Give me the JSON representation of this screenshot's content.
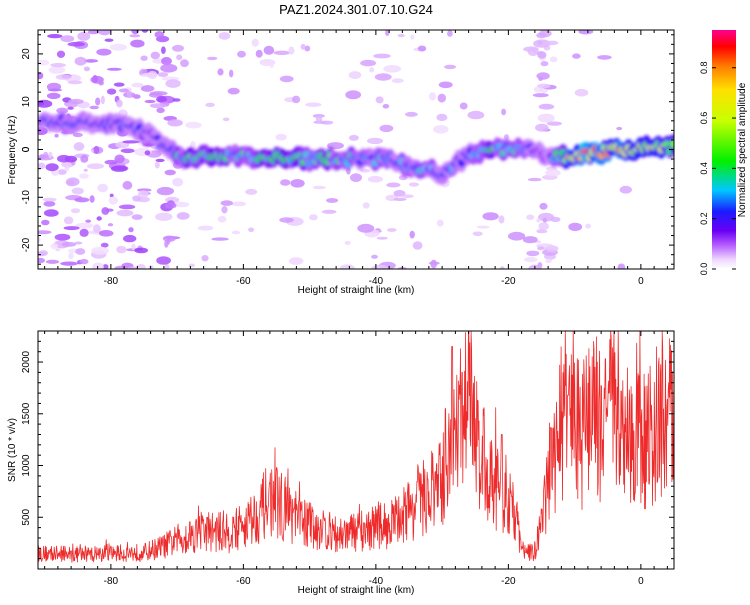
{
  "title": "PAZ1.2024.301.07.10.G24",
  "colorbar": {
    "label": "Normalized spectral amplitude",
    "ticks": [
      "0.0",
      "0.2",
      "0.4",
      "0.6",
      "0.8"
    ],
    "tick_values": [
      0.0,
      0.2,
      0.4,
      0.6,
      0.8
    ]
  },
  "chart_data": [
    {
      "type": "heatmap",
      "xlabel": "Height of straight line (km)",
      "ylabel": "Frequency (Hz)",
      "xlim": [
        -91,
        5
      ],
      "ylim": [
        -25,
        25
      ],
      "xticks": [
        -80,
        -60,
        -40,
        -20,
        0
      ],
      "yticks": [
        -20,
        -10,
        0,
        10,
        20
      ],
      "color_range": [
        0,
        0.95
      ],
      "ridge_frequency": [
        [
          -90,
          6
        ],
        [
          -86,
          6
        ],
        [
          -82,
          5
        ],
        [
          -78,
          5
        ],
        [
          -74,
          3
        ],
        [
          -70,
          -1.5
        ],
        [
          -66,
          -1.5
        ],
        [
          -62,
          -1.5
        ],
        [
          -58,
          -1.5
        ],
        [
          -54,
          -1.5
        ],
        [
          -50,
          -2
        ],
        [
          -46,
          -2
        ],
        [
          -42,
          -2
        ],
        [
          -38,
          -2
        ],
        [
          -34,
          -4
        ],
        [
          -30,
          -5
        ],
        [
          -26,
          -1
        ],
        [
          -22,
          0
        ],
        [
          -18,
          0
        ],
        [
          -16,
          0
        ],
        [
          -14,
          -1.5
        ],
        [
          -10,
          -1.5
        ],
        [
          -6,
          -0.5
        ],
        [
          -2,
          0
        ],
        [
          2,
          0.5
        ],
        [
          5,
          0.5
        ]
      ],
      "ridge_amplitude": [
        [
          -90,
          0.2
        ],
        [
          -86,
          0.25
        ],
        [
          -82,
          0.2
        ],
        [
          -78,
          0.25
        ],
        [
          -74,
          0.15
        ],
        [
          -70,
          0.35
        ],
        [
          -66,
          0.45
        ],
        [
          -62,
          0.35
        ],
        [
          -58,
          0.4
        ],
        [
          -54,
          0.45
        ],
        [
          -50,
          0.4
        ],
        [
          -46,
          0.35
        ],
        [
          -42,
          0.3
        ],
        [
          -38,
          0.3
        ],
        [
          -34,
          0.3
        ],
        [
          -30,
          0.3
        ],
        [
          -26,
          0.25
        ],
        [
          -22,
          0.4
        ],
        [
          -18,
          0.3
        ],
        [
          -16,
          0.15
        ],
        [
          -14,
          0.1
        ],
        [
          -10,
          0.9
        ],
        [
          -6,
          0.75
        ],
        [
          -2,
          0.7
        ],
        [
          2,
          0.65
        ],
        [
          5,
          0.5
        ]
      ]
    },
    {
      "type": "line",
      "xlabel": "Height of straight line (km)",
      "ylabel": "SNR (10 * v/v)",
      "xlim": [
        -91,
        5
      ],
      "ylim": [
        0,
        2300
      ],
      "xticks": [
        -80,
        -60,
        -40,
        -20,
        0
      ],
      "yticks": [
        500,
        1000,
        1500,
        2000
      ],
      "color": "#ee2a2a",
      "series": [
        {
          "x": [
            -91,
            -85,
            -80,
            -75,
            -72,
            -70,
            -68,
            -65,
            -62,
            -60,
            -58,
            -56,
            -54,
            -52,
            -50,
            -48,
            -46,
            -44,
            -42,
            -40,
            -38,
            -36,
            -34,
            -32,
            -30,
            -29,
            -28,
            -27,
            -26,
            -25,
            -24,
            -23,
            -22,
            -21,
            -20,
            -19,
            -18,
            -17,
            -16,
            -15,
            -14,
            -13,
            -12,
            -11,
            -10,
            -9,
            -8,
            -7,
            -6,
            -5,
            -4,
            -3,
            -2,
            -1,
            0,
            1,
            2,
            3,
            4,
            5
          ],
          "y": [
            150,
            140,
            150,
            160,
            220,
            280,
            330,
            370,
            340,
            430,
            520,
            680,
            600,
            480,
            430,
            380,
            330,
            340,
            380,
            410,
            430,
            520,
            620,
            720,
            820,
            1050,
            1200,
            1450,
            1650,
            1400,
            1050,
            850,
            800,
            760,
            650,
            520,
            200,
            160,
            170,
            420,
            820,
            1100,
            1450,
            1550,
            1380,
            1250,
            1500,
            1420,
            1300,
            1550,
            1500,
            1380,
            1250,
            1220,
            1350,
            1200,
            1400,
            1380,
            1450,
            1480
          ],
          "peaks": [
            {
              "x": -55,
              "y": 980
            },
            {
              "x": -29.5,
              "y": 1550
            },
            {
              "x": -28.5,
              "y": 2150
            },
            {
              "x": -27,
              "y": 1900
            },
            {
              "x": -26,
              "y": 2300
            },
            {
              "x": -21,
              "y": 1300
            },
            {
              "x": -11,
              "y": 1680
            },
            {
              "x": -6,
              "y": 1770
            },
            {
              "x": -3,
              "y": 1720
            }
          ]
        }
      ]
    }
  ]
}
